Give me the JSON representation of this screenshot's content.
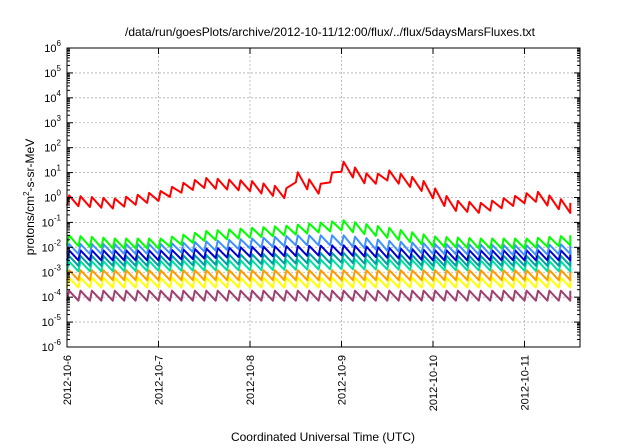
{
  "chart_data": {
    "type": "line",
    "title": "/data/run/goesPlots/archive/2012-10-11/12:00/flux/../flux/5daysMarsFluxes.txt",
    "xlabel": "Coordinated Universal Time (UTC)",
    "ylabel_base": "protons/cm",
    "ylabel_exp": "2",
    "ylabel_tail": "-s-sr-MeV",
    "y_scale": "log",
    "ylim_exp": [
      -6,
      6
    ],
    "y_tick_base": "10",
    "y_tick_exponents": [
      "6",
      "5",
      "4",
      "3",
      "2",
      "1",
      "0",
      "-1",
      "-2",
      "-3",
      "-4",
      "-5",
      "-6"
    ],
    "x_ticks": [
      "2012-10-6",
      "2012-10-7",
      "2012-10-8",
      "2012-10-9",
      "2012-10-10",
      "2012-10-11"
    ],
    "xlim_days": [
      0,
      5.5
    ],
    "grid": true,
    "legend": "none",
    "cycle_days": 0.125,
    "series": [
      {
        "color": "#ff0000",
        "points": [
          [
            0.0,
            0.8
          ],
          [
            0.5,
            0.6
          ],
          [
            1.0,
            1.2
          ],
          [
            1.3,
            3.0
          ],
          [
            1.5,
            4.0
          ],
          [
            2.0,
            3.0
          ],
          [
            2.4,
            1.5
          ],
          [
            2.42,
            13.0
          ],
          [
            2.55,
            4.5
          ],
          [
            2.8,
            2.0
          ],
          [
            2.9,
            10.0
          ],
          [
            3.0,
            18.0
          ],
          [
            3.3,
            5.0
          ],
          [
            3.5,
            8.0
          ],
          [
            3.85,
            3.5
          ],
          [
            4.2,
            0.5
          ],
          [
            4.5,
            0.4
          ],
          [
            4.9,
            0.8
          ],
          [
            5.1,
            1.2
          ],
          [
            5.5,
            0.4
          ]
        ]
      },
      {
        "color": "#00ff00",
        "points": [
          [
            0.0,
            0.02
          ],
          [
            0.5,
            0.015
          ],
          [
            1.0,
            0.015
          ],
          [
            1.5,
            0.03
          ],
          [
            2.0,
            0.04
          ],
          [
            2.4,
            0.05
          ],
          [
            3.0,
            0.08
          ],
          [
            3.5,
            0.04
          ],
          [
            4.0,
            0.018
          ],
          [
            4.5,
            0.015
          ],
          [
            5.0,
            0.015
          ],
          [
            5.5,
            0.02
          ]
        ]
      },
      {
        "color": "#3f91ff",
        "points": [
          [
            0.0,
            0.009
          ],
          [
            1.0,
            0.009
          ],
          [
            1.6,
            0.012
          ],
          [
            2.0,
            0.015
          ],
          [
            2.5,
            0.02
          ],
          [
            3.0,
            0.02
          ],
          [
            3.5,
            0.012
          ],
          [
            4.0,
            0.009
          ],
          [
            5.0,
            0.008
          ],
          [
            5.5,
            0.009
          ]
        ]
      },
      {
        "color": "#0000cc",
        "points": [
          [
            0.0,
            0.005
          ],
          [
            1.0,
            0.005
          ],
          [
            2.0,
            0.007
          ],
          [
            3.0,
            0.008
          ],
          [
            4.0,
            0.005
          ],
          [
            5.5,
            0.005
          ]
        ]
      },
      {
        "color": "#00a0a0",
        "points": [
          [
            0.0,
            0.003
          ],
          [
            1.0,
            0.003
          ],
          [
            2.0,
            0.0035
          ],
          [
            3.0,
            0.004
          ],
          [
            4.0,
            0.003
          ],
          [
            5.5,
            0.003
          ]
        ]
      },
      {
        "color": "#00e0a0",
        "points": [
          [
            0.0,
            0.0018
          ],
          [
            2.0,
            0.002
          ],
          [
            3.0,
            0.0022
          ],
          [
            5.5,
            0.0018
          ]
        ]
      },
      {
        "color": "#ff9a00",
        "points": [
          [
            0.0,
            0.0008
          ],
          [
            5.5,
            0.0008
          ]
        ]
      },
      {
        "color": "#ffff00",
        "points": [
          [
            0.0,
            0.0004
          ],
          [
            5.5,
            0.0004
          ]
        ]
      },
      {
        "color": "#a04070",
        "points": [
          [
            0.0,
            0.00012
          ],
          [
            5.5,
            0.00012
          ]
        ]
      }
    ]
  }
}
